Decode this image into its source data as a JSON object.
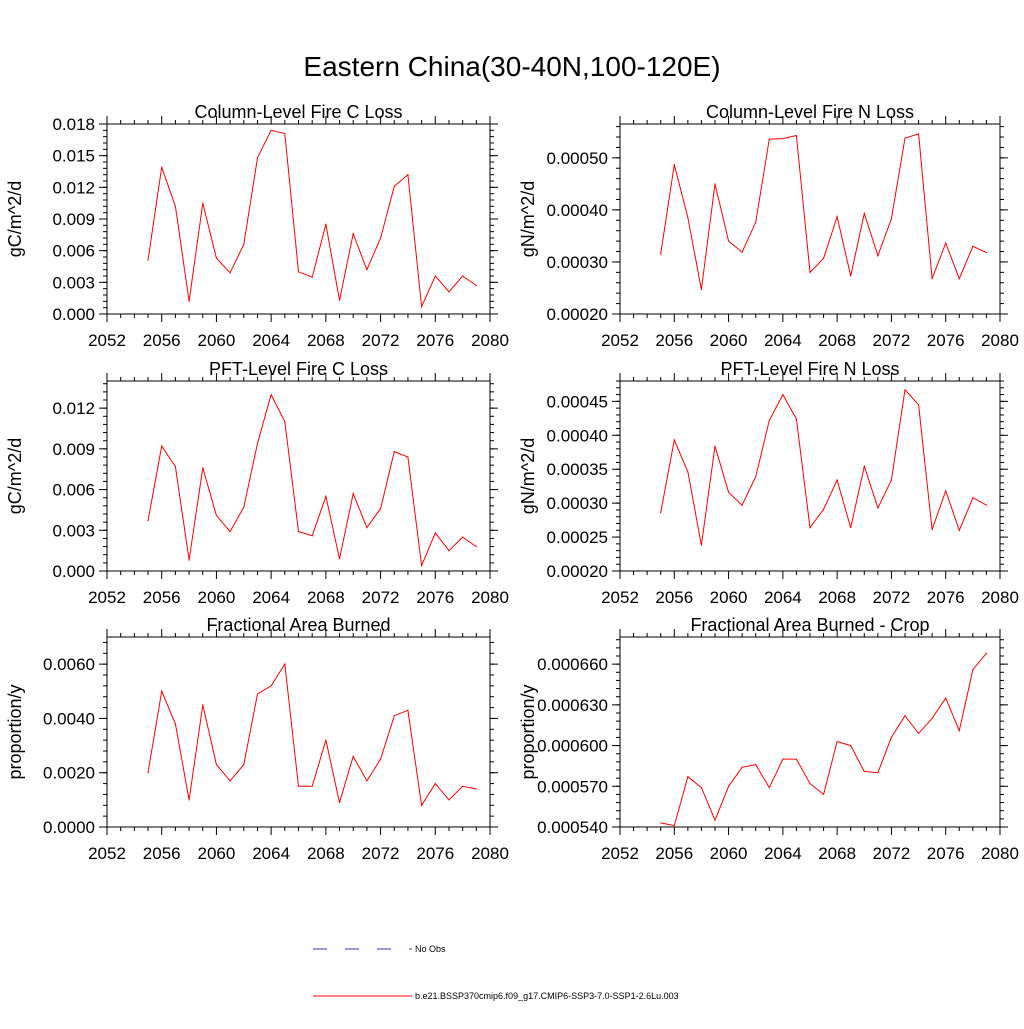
{
  "title": "Eastern China(30-40N,100-120E)",
  "colors": {
    "model_line": "#ff0000",
    "obs_line": "#3a3aaa",
    "axis": "#000000",
    "background": "#ffffff"
  },
  "legend": {
    "obs_label": "No Obs",
    "model_label": "b.e21.BSSP370cmip6.f09_g17.CMIP6-SSP3-7.0-SSP1-2.6Lu.003"
  },
  "chart_data": [
    {
      "type": "line",
      "title": "Column-Level Fire C Loss",
      "ylabel": "gC/m^2/d",
      "xlim": [
        2052,
        2080
      ],
      "ylim": [
        0,
        0.018
      ],
      "x_ticks": [
        "2052",
        "2056",
        "2060",
        "2064",
        "2068",
        "2072",
        "2076",
        "2080"
      ],
      "y_ticks": [
        "0.000",
        "0.003",
        "0.006",
        "0.009",
        "0.012",
        "0.015",
        "0.018"
      ],
      "x": [
        2055,
        2056,
        2057,
        2058,
        2059,
        2060,
        2061,
        2062,
        2063,
        2064,
        2065,
        2066,
        2067,
        2068,
        2069,
        2070,
        2071,
        2072,
        2073,
        2074,
        2075,
        2076,
        2077,
        2078,
        2079
      ],
      "series": [
        {
          "name": "b.e21.BSSP370cmip6.f09_g17.CMIP6-SSP3-7.0-SSP1-2.6Lu.003",
          "values": [
            0.0051,
            0.0139,
            0.0102,
            0.0012,
            0.0105,
            0.0053,
            0.0039,
            0.0066,
            0.0148,
            0.0174,
            0.0171,
            0.004,
            0.0035,
            0.0085,
            0.0013,
            0.0076,
            0.0042,
            0.0072,
            0.0121,
            0.0132,
            0.0007,
            0.0036,
            0.0021,
            0.0036,
            0.0027
          ]
        }
      ]
    },
    {
      "type": "line",
      "title": "Column-Level Fire N Loss",
      "ylabel": "gN/m^2/d",
      "xlim": [
        2052,
        2080
      ],
      "ylim": [
        0.0002,
        0.000565
      ],
      "x_ticks": [
        "2052",
        "2056",
        "2060",
        "2064",
        "2068",
        "2072",
        "2076",
        "2080"
      ],
      "y_ticks": [
        "0.00020",
        "0.00030",
        "0.00040",
        "0.00050"
      ],
      "x": [
        2055,
        2056,
        2057,
        2058,
        2059,
        2060,
        2061,
        2062,
        2063,
        2064,
        2065,
        2066,
        2067,
        2068,
        2069,
        2070,
        2071,
        2072,
        2073,
        2074,
        2075,
        2076,
        2077,
        2078,
        2079
      ],
      "series": [
        {
          "name": "b.e21.BSSP370cmip6.f09_g17.CMIP6-SSP3-7.0-SSP1-2.6Lu.003",
          "values": [
            0.000315,
            0.000487,
            0.000385,
            0.000247,
            0.00045,
            0.00034,
            0.000319,
            0.000376,
            0.000536,
            0.000537,
            0.000543,
            0.00028,
            0.000307,
            0.000387,
            0.000273,
            0.000393,
            0.000312,
            0.000383,
            0.000538,
            0.000546,
            0.000268,
            0.000336,
            0.000268,
            0.00033,
            0.000318
          ]
        }
      ]
    },
    {
      "type": "line",
      "title": "PFT-Level Fire C Loss",
      "ylabel": "gC/m^2/d",
      "xlim": [
        2052,
        2080
      ],
      "ylim": [
        0,
        0.014
      ],
      "x_ticks": [
        "2052",
        "2056",
        "2060",
        "2064",
        "2068",
        "2072",
        "2076",
        "2080"
      ],
      "y_ticks": [
        "0.000",
        "0.003",
        "0.006",
        "0.009",
        "0.012"
      ],
      "x": [
        2055,
        2056,
        2057,
        2058,
        2059,
        2060,
        2061,
        2062,
        2063,
        2064,
        2065,
        2066,
        2067,
        2068,
        2069,
        2070,
        2071,
        2072,
        2073,
        2074,
        2075,
        2076,
        2077,
        2078,
        2079
      ],
      "series": [
        {
          "name": "b.e21.BSSP370cmip6.f09_g17.CMIP6-SSP3-7.0-SSP1-2.6Lu.003",
          "values": [
            0.0037,
            0.0092,
            0.0077,
            0.0008,
            0.0076,
            0.0041,
            0.0029,
            0.0047,
            0.0094,
            0.013,
            0.011,
            0.0029,
            0.0026,
            0.0055,
            0.0009,
            0.0057,
            0.0032,
            0.0046,
            0.0088,
            0.0084,
            0.0004,
            0.0028,
            0.0015,
            0.0025,
            0.0018
          ]
        }
      ]
    },
    {
      "type": "line",
      "title": "PFT-Level Fire N Loss",
      "ylabel": "gN/m^2/d",
      "xlim": [
        2052,
        2080
      ],
      "ylim": [
        0.0002,
        0.00048
      ],
      "x_ticks": [
        "2052",
        "2056",
        "2060",
        "2064",
        "2068",
        "2072",
        "2076",
        "2080"
      ],
      "y_ticks": [
        "0.00020",
        "0.00025",
        "0.00030",
        "0.00035",
        "0.00040",
        "0.00045"
      ],
      "x": [
        2055,
        2056,
        2057,
        2058,
        2059,
        2060,
        2061,
        2062,
        2063,
        2064,
        2065,
        2066,
        2067,
        2068,
        2069,
        2070,
        2071,
        2072,
        2073,
        2074,
        2075,
        2076,
        2077,
        2078,
        2079
      ],
      "series": [
        {
          "name": "b.e21.BSSP370cmip6.f09_g17.CMIP6-SSP3-7.0-SSP1-2.6Lu.003",
          "values": [
            0.000286,
            0.000393,
            0.000346,
            0.000238,
            0.000384,
            0.000316,
            0.000297,
            0.000339,
            0.000422,
            0.00046,
            0.000424,
            0.000264,
            0.000291,
            0.000334,
            0.000264,
            0.000354,
            0.000293,
            0.000334,
            0.000467,
            0.000445,
            0.000261,
            0.000318,
            0.00026,
            0.000308,
            0.000297
          ]
        }
      ]
    },
    {
      "type": "line",
      "title": "Fractional Area Burned",
      "ylabel": "proportion/y",
      "xlim": [
        2052,
        2080
      ],
      "ylim": [
        0,
        0.007
      ],
      "x_ticks": [
        "2052",
        "2056",
        "2060",
        "2064",
        "2068",
        "2072",
        "2076",
        "2080"
      ],
      "y_ticks": [
        "0.0000",
        "0.0020",
        "0.0040",
        "0.0060"
      ],
      "x": [
        2055,
        2056,
        2057,
        2058,
        2059,
        2060,
        2061,
        2062,
        2063,
        2064,
        2065,
        2066,
        2067,
        2068,
        2069,
        2070,
        2071,
        2072,
        2073,
        2074,
        2075,
        2076,
        2077,
        2078,
        2079
      ],
      "series": [
        {
          "name": "b.e21.BSSP370cmip6.f09_g17.CMIP6-SSP3-7.0-SSP1-2.6Lu.003",
          "values": [
            0.002,
            0.005,
            0.0038,
            0.001,
            0.0045,
            0.0023,
            0.0017,
            0.0023,
            0.0049,
            0.0052,
            0.006,
            0.0015,
            0.0015,
            0.0032,
            0.0009,
            0.0026,
            0.0017,
            0.0025,
            0.0041,
            0.0043,
            0.0008,
            0.0016,
            0.001,
            0.0015,
            0.0014
          ]
        }
      ]
    },
    {
      "type": "line",
      "title": "Fractional Area Burned - Crop",
      "ylabel": "proportion/y",
      "xlim": [
        2052,
        2080
      ],
      "ylim": [
        0.00054,
        0.00068
      ],
      "x_ticks": [
        "2052",
        "2056",
        "2060",
        "2064",
        "2068",
        "2072",
        "2076",
        "2080"
      ],
      "y_ticks": [
        "0.000540",
        "0.000570",
        "0.000600",
        "0.000630",
        "0.000660"
      ],
      "x": [
        2055,
        2056,
        2057,
        2058,
        2059,
        2060,
        2061,
        2062,
        2063,
        2064,
        2065,
        2066,
        2067,
        2068,
        2069,
        2070,
        2071,
        2072,
        2073,
        2074,
        2075,
        2076,
        2077,
        2078,
        2079
      ],
      "series": [
        {
          "name": "b.e21.BSSP370cmip6.f09_g17.CMIP6-SSP3-7.0-SSP1-2.6Lu.003",
          "values": [
            0.000543,
            0.000541,
            0.000577,
            0.000569,
            0.000545,
            0.00057,
            0.000584,
            0.000586,
            0.000569,
            0.00059,
            0.00059,
            0.000572,
            0.000564,
            0.000603,
            0.0006,
            0.000581,
            0.00058,
            0.000606,
            0.000622,
            0.000609,
            0.00062,
            0.000635,
            0.000611,
            0.000656,
            0.000668
          ]
        }
      ]
    }
  ]
}
